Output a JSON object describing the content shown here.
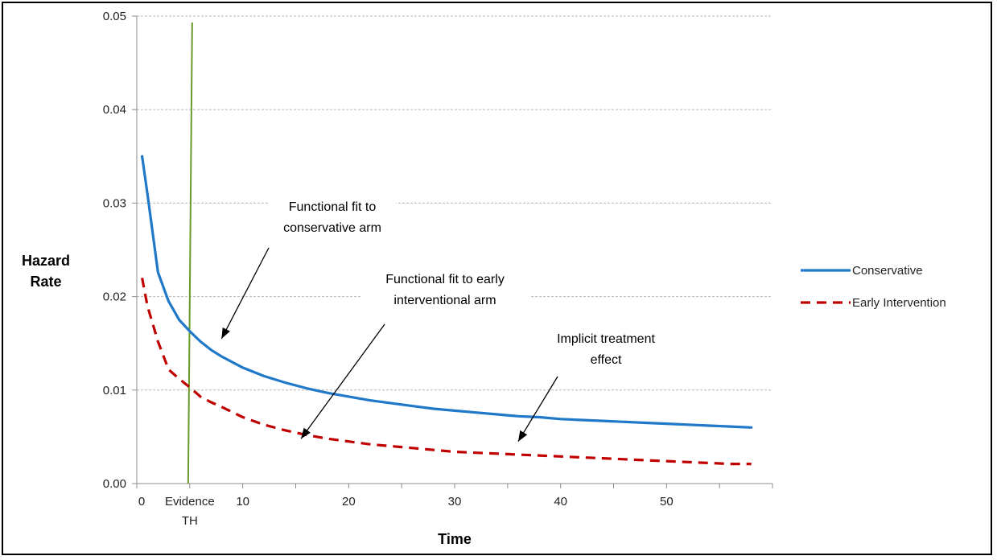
{
  "chart_data": {
    "type": "line",
    "title": "",
    "xlabel": "Time",
    "ylabel_lines": [
      "Hazard",
      "Rate"
    ],
    "xlim": [
      0,
      60
    ],
    "ylim": [
      0,
      0.05
    ],
    "x_ticks": [
      "0",
      "10",
      "20",
      "30",
      "40",
      "50"
    ],
    "x_tick_values": [
      0,
      10,
      20,
      30,
      40,
      50
    ],
    "y_ticks": [
      "0.00",
      "0.01",
      "0.02",
      "0.03",
      "0.04",
      "0.05"
    ],
    "y_tick_values": [
      0,
      0.01,
      0.02,
      0.03,
      0.04,
      0.05
    ],
    "grid": "horizontal dashed",
    "legend_position": "right",
    "threshold": {
      "x": 5,
      "label_lines": [
        "Evidence",
        "TH"
      ],
      "color": "#6a9a2a"
    },
    "series": [
      {
        "name": "Conservative",
        "color": "#1f78c8",
        "style": "solid",
        "x": [
          0.5,
          1,
          2,
          3,
          4,
          5,
          6,
          7,
          8,
          10,
          12,
          14,
          16,
          18,
          20,
          22,
          24,
          26,
          28,
          30,
          32,
          34,
          36,
          38,
          40,
          42,
          44,
          46,
          48,
          50,
          52,
          54,
          56,
          58
        ],
        "values": [
          0.035,
          0.031,
          0.0226,
          0.0195,
          0.0175,
          0.0163,
          0.0152,
          0.0143,
          0.0136,
          0.0124,
          0.0115,
          0.0108,
          0.0102,
          0.0097,
          0.0093,
          0.0089,
          0.0086,
          0.0083,
          0.008,
          0.0078,
          0.0076,
          0.0074,
          0.0072,
          0.0071,
          0.0069,
          0.0068,
          0.0067,
          0.0066,
          0.0065,
          0.0064,
          0.0063,
          0.0062,
          0.0061,
          0.006
        ]
      },
      {
        "name": "Early Intervention",
        "color": "#c00000",
        "style": "dashed",
        "x": [
          0.5,
          1,
          2,
          3,
          4,
          5,
          6,
          7,
          8,
          10,
          12,
          14,
          16,
          18,
          20,
          22,
          24,
          26,
          28,
          30,
          32,
          34,
          36,
          38,
          40,
          42,
          44,
          46,
          48,
          50,
          52,
          54,
          56,
          58
        ],
        "values": [
          0.022,
          0.019,
          0.0152,
          0.0122,
          0.0112,
          0.0103,
          0.0093,
          0.0087,
          0.0082,
          0.0071,
          0.0063,
          0.0057,
          0.0052,
          0.0048,
          0.0045,
          0.0042,
          0.004,
          0.0038,
          0.0036,
          0.0034,
          0.0033,
          0.0032,
          0.0031,
          0.003,
          0.0029,
          0.0028,
          0.0027,
          0.0026,
          0.0025,
          0.0024,
          0.0023,
          0.0022,
          0.0021,
          0.0021
        ]
      }
    ],
    "annotations": [
      {
        "lines": [
          "Functional fit to",
          "conservative arm"
        ],
        "arrow_to": [
          8,
          0.0155
        ]
      },
      {
        "lines": [
          "Functional fit to early",
          "interventional arm"
        ],
        "arrow_to": [
          15.5,
          0.0048
        ]
      },
      {
        "lines": [
          "Implicit treatment",
          "effect"
        ],
        "arrow_to": [
          36,
          0.0045
        ]
      }
    ]
  }
}
